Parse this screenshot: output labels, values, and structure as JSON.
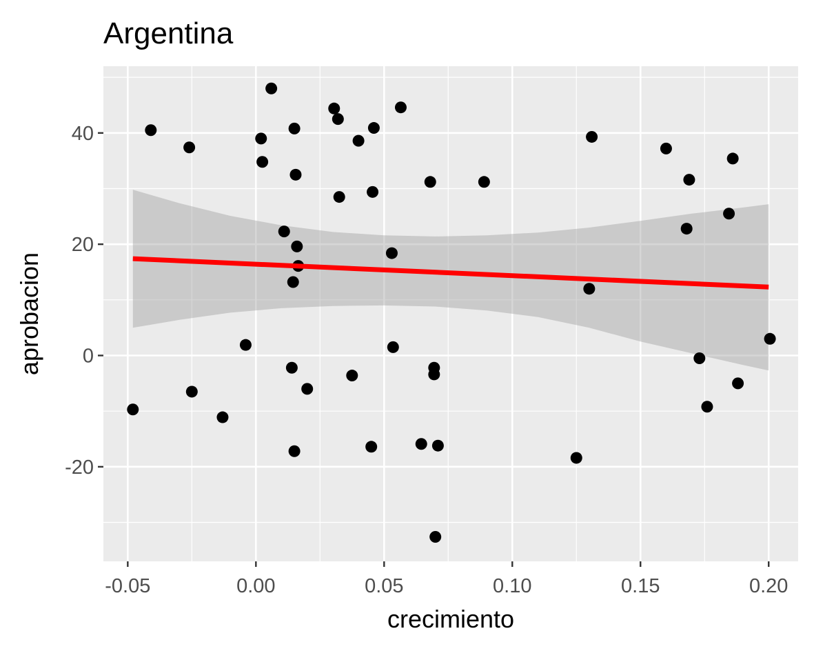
{
  "chart_data": {
    "type": "scatter",
    "title": "Argentina",
    "xlabel": "crecimiento",
    "ylabel": "aprobacion",
    "xlim": [
      -0.0595,
      0.2115
    ],
    "ylim": [
      -37,
      52
    ],
    "x_ticks": [
      -0.05,
      0.0,
      0.05,
      0.1,
      0.15,
      0.2
    ],
    "x_tick_labels": [
      "-0.05",
      "0.00",
      "0.05",
      "0.10",
      "0.15",
      "0.20"
    ],
    "y_ticks": [
      -20,
      0,
      20,
      40
    ],
    "y_tick_labels": [
      "-20",
      "0",
      "20",
      "40"
    ],
    "grid": true,
    "background_color": "#EBEBEB",
    "grid_color": "#FFFFFF",
    "point_color": "#000000",
    "points": [
      {
        "x": -0.048,
        "y": -9.7
      },
      {
        "x": -0.041,
        "y": 40.5
      },
      {
        "x": -0.026,
        "y": 37.4
      },
      {
        "x": -0.025,
        "y": -6.5
      },
      {
        "x": -0.013,
        "y": -11.1
      },
      {
        "x": -0.004,
        "y": 1.9
      },
      {
        "x": 0.002,
        "y": 39.0
      },
      {
        "x": 0.0025,
        "y": 34.8
      },
      {
        "x": 0.006,
        "y": 48.0
      },
      {
        "x": 0.011,
        "y": 22.3
      },
      {
        "x": 0.014,
        "y": -2.2
      },
      {
        "x": 0.0145,
        "y": 13.2
      },
      {
        "x": 0.015,
        "y": 40.8
      },
      {
        "x": 0.015,
        "y": -17.2
      },
      {
        "x": 0.0155,
        "y": 32.5
      },
      {
        "x": 0.016,
        "y": 19.6
      },
      {
        "x": 0.0165,
        "y": 16.1
      },
      {
        "x": 0.02,
        "y": -6.0
      },
      {
        "x": 0.0305,
        "y": 44.4
      },
      {
        "x": 0.032,
        "y": 42.5
      },
      {
        "x": 0.0325,
        "y": 28.5
      },
      {
        "x": 0.0375,
        "y": -3.6
      },
      {
        "x": 0.04,
        "y": 38.6
      },
      {
        "x": 0.045,
        "y": -16.4
      },
      {
        "x": 0.0455,
        "y": 29.4
      },
      {
        "x": 0.046,
        "y": 40.9
      },
      {
        "x": 0.053,
        "y": 18.4
      },
      {
        "x": 0.0535,
        "y": 1.5
      },
      {
        "x": 0.0565,
        "y": 44.6
      },
      {
        "x": 0.0645,
        "y": -15.9
      },
      {
        "x": 0.068,
        "y": 31.2
      },
      {
        "x": 0.0695,
        "y": -2.2
      },
      {
        "x": 0.0695,
        "y": -3.4
      },
      {
        "x": 0.07,
        "y": -32.6
      },
      {
        "x": 0.071,
        "y": -16.2
      },
      {
        "x": 0.089,
        "y": 31.2
      },
      {
        "x": 0.125,
        "y": -18.4
      },
      {
        "x": 0.13,
        "y": 12.0
      },
      {
        "x": 0.131,
        "y": 39.3
      },
      {
        "x": 0.16,
        "y": 37.2
      },
      {
        "x": 0.168,
        "y": 22.8
      },
      {
        "x": 0.169,
        "y": 31.6
      },
      {
        "x": 0.173,
        "y": -0.5
      },
      {
        "x": 0.176,
        "y": -9.2
      },
      {
        "x": 0.1845,
        "y": 25.5
      },
      {
        "x": 0.186,
        "y": 35.4
      },
      {
        "x": 0.188,
        "y": -5.0
      },
      {
        "x": 0.2005,
        "y": 3.0
      }
    ],
    "regression_line": {
      "color": "#FF0000",
      "x": [
        -0.048,
        0.2
      ],
      "y": [
        17.4,
        12.3
      ]
    },
    "confidence_band": {
      "color": "#999999",
      "x": [
        -0.048,
        -0.03,
        -0.01,
        0.01,
        0.03,
        0.05,
        0.07,
        0.09,
        0.11,
        0.13,
        0.15,
        0.17,
        0.19,
        0.2
      ],
      "upper": [
        29.8,
        27.4,
        25.1,
        23.4,
        22.2,
        21.6,
        21.4,
        21.6,
        22.1,
        23.0,
        24.2,
        25.5,
        26.6,
        27.2
      ],
      "lower": [
        5.0,
        6.4,
        7.7,
        8.5,
        8.9,
        9.0,
        8.8,
        8.1,
        6.9,
        5.0,
        2.5,
        0.4,
        -1.7,
        -2.7
      ]
    }
  }
}
